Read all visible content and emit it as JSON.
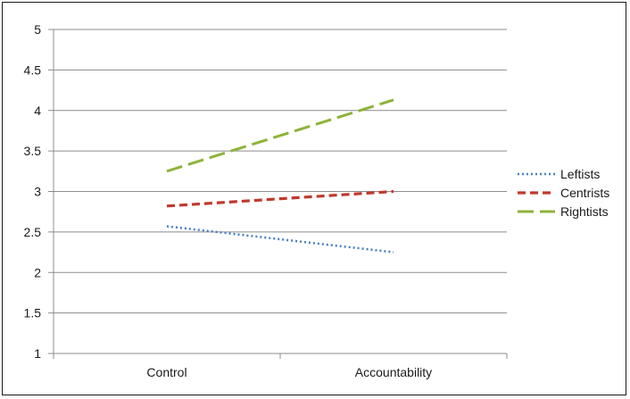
{
  "chart_data": {
    "type": "line",
    "categories": [
      "Control",
      "Accountability"
    ],
    "series": [
      {
        "name": "Leftists",
        "values": [
          2.57,
          2.25
        ],
        "color": "#4a7fc1",
        "style": "dotted"
      },
      {
        "name": "Centrists",
        "values": [
          2.82,
          3.0
        ],
        "color": "#c0392b",
        "style": "dashed"
      },
      {
        "name": "Rightists",
        "values": [
          3.25,
          4.13
        ],
        "color": "#8db33a",
        "style": "long-dashed"
      }
    ],
    "yticks": [
      "1",
      "1.5",
      "2",
      "2.5",
      "3",
      "3.5",
      "4",
      "4.5",
      "5"
    ],
    "ylim": [
      1,
      5
    ],
    "grid": true,
    "legend": "right"
  }
}
